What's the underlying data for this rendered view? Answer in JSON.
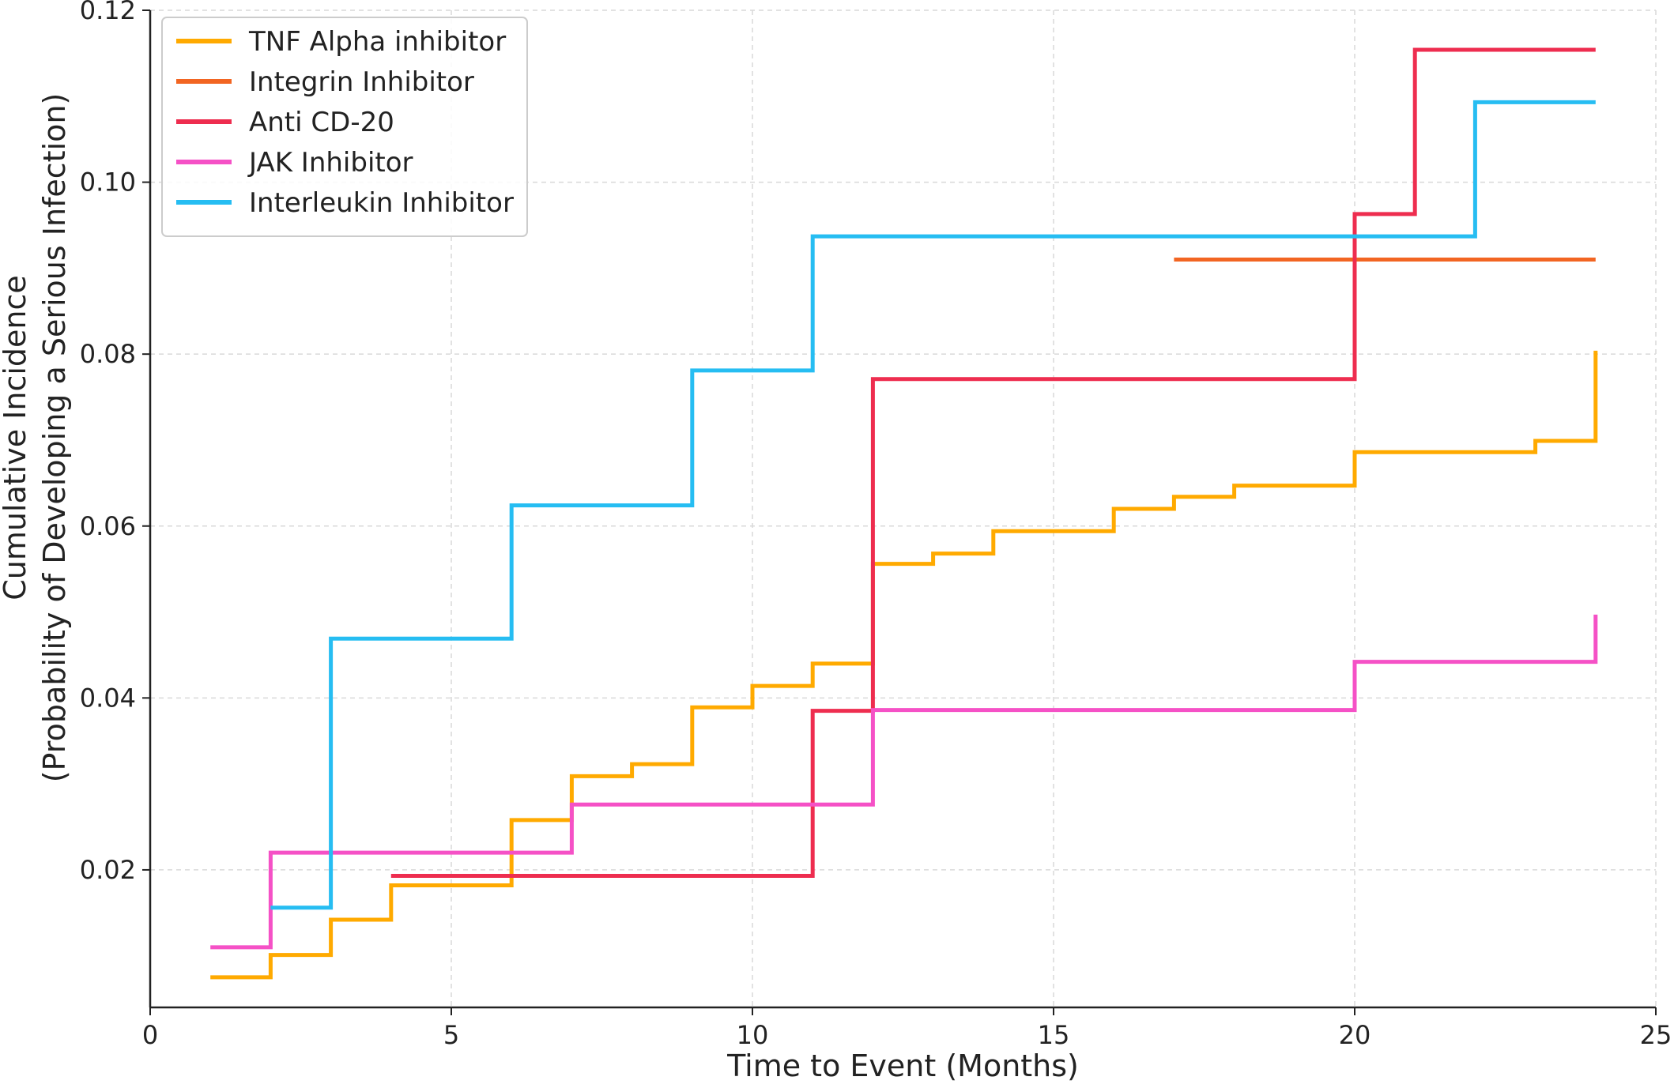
{
  "chart_data": {
    "type": "line",
    "step": true,
    "title": "",
    "xlabel": "Time to Event (Months)",
    "ylabel": [
      "Cumulative Incidence",
      "(Probability of Developing a Serious Infection)"
    ],
    "xlim": [
      0,
      25
    ],
    "ylim": [
      0.004,
      0.12
    ],
    "xticks": [
      0,
      5,
      10,
      15,
      20,
      25
    ],
    "yticks": [
      0.02,
      0.04,
      0.06,
      0.08,
      0.1,
      0.12
    ],
    "xtick_labels": [
      "0",
      "5",
      "10",
      "15",
      "20",
      "25"
    ],
    "ytick_labels": [
      "0.02",
      "0.04",
      "0.06",
      "0.08",
      "0.10",
      "0.12"
    ],
    "grid": true,
    "legend_position": "top-left",
    "series": [
      {
        "name": "TNF Alpha inhibitor",
        "color": "#FFAA00",
        "x": [
          1,
          2,
          3,
          4,
          6,
          7,
          8,
          9,
          10,
          11,
          12,
          13,
          14,
          16,
          17,
          18,
          20,
          23,
          24
        ],
        "y": [
          0.0075,
          0.0101,
          0.0142,
          0.0182,
          0.0258,
          0.0309,
          0.0323,
          0.0389,
          0.0414,
          0.044,
          0.0556,
          0.0568,
          0.0594,
          0.062,
          0.0634,
          0.0647,
          0.0686,
          0.0699,
          0.0804
        ]
      },
      {
        "name": "Integrin Inhibitor",
        "color": "#F26522",
        "x": [
          17,
          24
        ],
        "y": [
          0.091,
          0.091
        ]
      },
      {
        "name": "Anti CD-20",
        "color": "#EE2D4F",
        "x": [
          4,
          11,
          12,
          20,
          21,
          24
        ],
        "y": [
          0.0193,
          0.0385,
          0.0771,
          0.0963,
          0.1154,
          0.1154
        ]
      },
      {
        "name": "JAK Inhibitor",
        "color": "#F551C6",
        "x": [
          1,
          2,
          7,
          12,
          20,
          24
        ],
        "y": [
          0.011,
          0.022,
          0.0276,
          0.0386,
          0.0442,
          0.0497
        ]
      },
      {
        "name": "Interleukin Inhibitor",
        "color": "#26BDF2",
        "x": [
          2,
          3,
          6,
          9,
          11,
          22,
          24
        ],
        "y": [
          0.0156,
          0.0469,
          0.0624,
          0.0781,
          0.0937,
          0.1093,
          0.1093
        ]
      }
    ]
  }
}
